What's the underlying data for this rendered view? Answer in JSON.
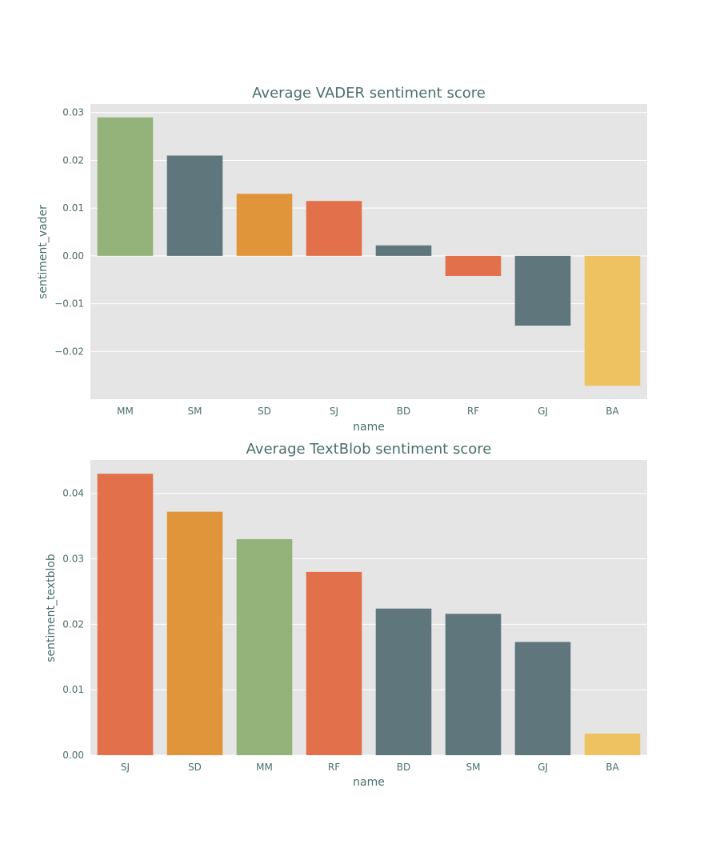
{
  "colors": {
    "background": "#ffffff",
    "axes_face": "#e5e5e5",
    "grid": "#ffffff",
    "text": "#4b6f6b",
    "palette": {
      "green": "#93b37a",
      "slate": "#5e767c",
      "orange": "#e1953a",
      "coral": "#e1704b",
      "yellow": "#eec161"
    }
  },
  "chart_data": [
    {
      "type": "bar",
      "title": "Average VADER sentiment score",
      "xlabel": "name",
      "ylabel": "sentiment_vader",
      "categories": [
        "MM",
        "SM",
        "SD",
        "SJ",
        "BD",
        "RF",
        "GJ",
        "BA"
      ],
      "values": [
        0.029,
        0.021,
        0.013,
        0.0115,
        0.0022,
        -0.0042,
        -0.0146,
        -0.0272
      ],
      "bar_colors": [
        "#93b37a",
        "#5e767c",
        "#e1953a",
        "#e1704b",
        "#5e767c",
        "#e1704b",
        "#5e767c",
        "#eec161"
      ],
      "ylim": [
        -0.03,
        0.0318
      ],
      "yticks": [
        -0.02,
        -0.01,
        0.0,
        0.01,
        0.02,
        0.03
      ],
      "ytick_labels": [
        "−0.02",
        "−0.01",
        "0.00",
        "0.01",
        "0.02",
        "0.03"
      ],
      "grid": true
    },
    {
      "type": "bar",
      "title": "Average TextBlob sentiment score",
      "xlabel": "name",
      "ylabel": "sentiment_textblob",
      "categories": [
        "SJ",
        "SD",
        "MM",
        "RF",
        "BD",
        "SM",
        "GJ",
        "BA"
      ],
      "values": [
        0.043,
        0.0372,
        0.033,
        0.028,
        0.0224,
        0.0216,
        0.0173,
        0.0033
      ],
      "bar_colors": [
        "#e1704b",
        "#e1953a",
        "#93b37a",
        "#e1704b",
        "#5e767c",
        "#5e767c",
        "#5e767c",
        "#eec161"
      ],
      "ylim": [
        0.0,
        0.0451
      ],
      "yticks": [
        0.0,
        0.01,
        0.02,
        0.03,
        0.04
      ],
      "ytick_labels": [
        "0.00",
        "0.01",
        "0.02",
        "0.03",
        "0.04"
      ],
      "grid": true
    }
  ]
}
